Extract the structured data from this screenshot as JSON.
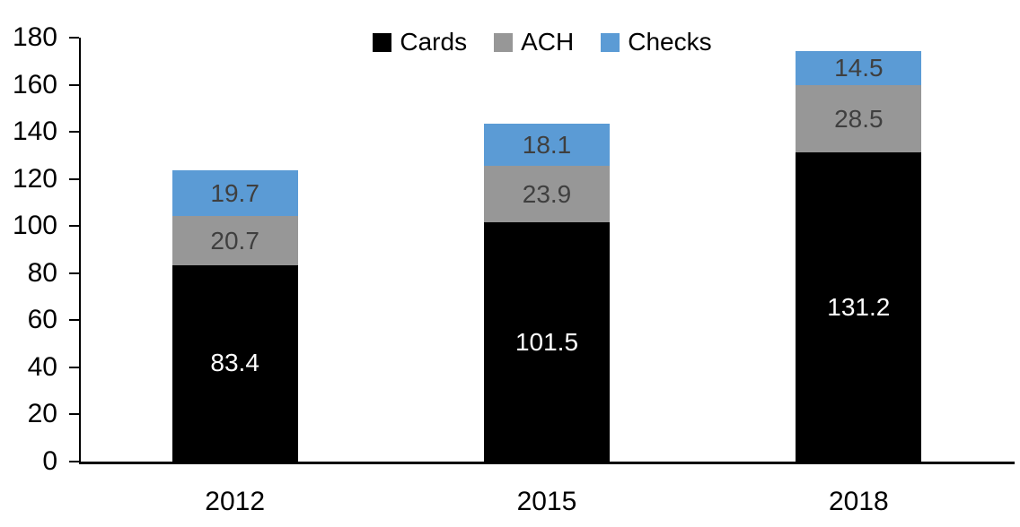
{
  "chart_data": {
    "type": "bar",
    "stacked": true,
    "categories": [
      "2012",
      "2015",
      "2018"
    ],
    "series": [
      {
        "name": "Cards",
        "color": "#000000",
        "label_color": "#ffffff",
        "values": [
          83.4,
          101.5,
          131.2
        ]
      },
      {
        "name": "ACH",
        "color": "#979797",
        "label_color": "#3f3f3f",
        "values": [
          20.7,
          23.9,
          28.5
        ]
      },
      {
        "name": "Checks",
        "color": "#5b9bd5",
        "label_color": "#3f3f3f",
        "values": [
          19.7,
          18.1,
          14.5
        ]
      }
    ],
    "totals": [
      123.8,
      143.5,
      174.2
    ],
    "xlabel": "",
    "ylabel": "",
    "ylim": [
      0,
      180
    ],
    "ytick_step": 20,
    "yticks": [
      0,
      20,
      40,
      60,
      80,
      100,
      120,
      140,
      160,
      180
    ],
    "grid": false,
    "legend_position": "top-center",
    "legend_marker": "square",
    "axis_color": "#000000",
    "background_color": "#ffffff"
  }
}
